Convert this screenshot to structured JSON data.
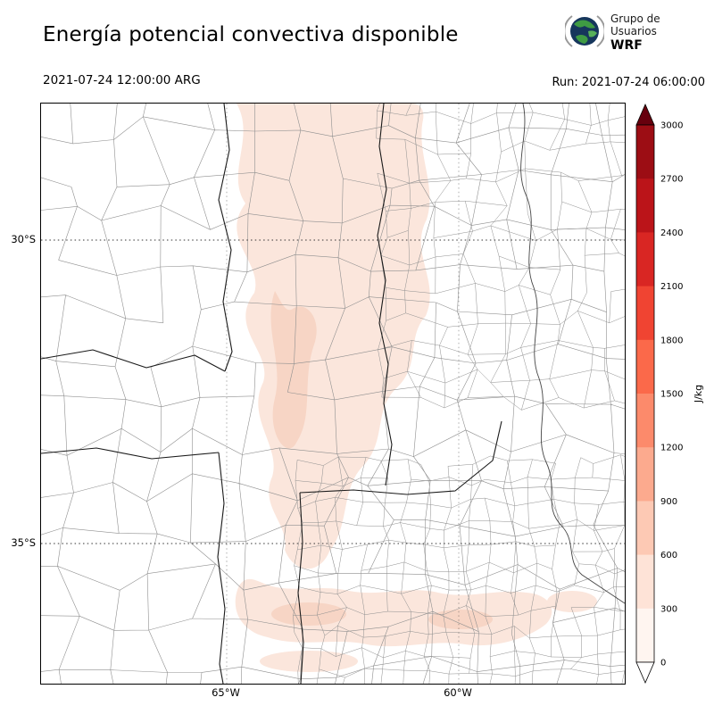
{
  "header": {
    "title": "Energía potencial convectiva disponible",
    "valid_time": "2021-07-24 12:00:00 ARG",
    "run_label": "Run: 2021-07-24 06:00:00"
  },
  "logo": {
    "line1": "Grupo de",
    "line2": "Usuarios",
    "line3": "WRF"
  },
  "axes": {
    "lat_ticks": [
      "30°S",
      "35°S"
    ],
    "lon_ticks": [
      "65°W",
      "60°W"
    ]
  },
  "colorbar": {
    "unit": "J/kg",
    "ticks_top_to_bottom": [
      "3000",
      "2700",
      "2400",
      "2100",
      "1800",
      "1500",
      "1200",
      "900",
      "600",
      "300",
      "0"
    ],
    "segment_colors_top_to_bottom": [
      "#9c0d14",
      "#bb1419",
      "#d92623",
      "#f04432",
      "#fb694a",
      "#fc8a6b",
      "#fcaa8e",
      "#fdc9b4",
      "#fee3d7",
      "#fff5f0"
    ],
    "over_arrow_color": "#67000d",
    "under_arrow_color": "#ffffff"
  },
  "map_colors": {
    "shading_light": "#fbe6dc",
    "shading_medium": "#f7d5c5",
    "department_line": "#8f8f8f",
    "province_line": "#1a1a1a",
    "river_line": "#444444"
  },
  "chart_data": {
    "type": "heatmap",
    "title": "Energía potencial convectiva disponible",
    "units": "J/kg",
    "valid_time": "2021-07-24 12:00:00 ARG",
    "run": "2021-07-24 06:00:00",
    "levels": [
      0,
      300,
      600,
      900,
      1200,
      1500,
      1800,
      2100,
      2400,
      2700,
      3000
    ],
    "colormap": "Reds, white (0) to dark red (3000), arrow extensions on both ends",
    "x_tick_labels": [
      "65°W",
      "60°W"
    ],
    "y_tick_labels": [
      "30°S",
      "35°S"
    ],
    "grid": "dotted latitude/longitude gridlines at 30°S, 35°S, 65°W, 60°W",
    "legend_position": "vertical colorbar at right",
    "basemap": "central Argentina province and department boundaries",
    "observed_field": [
      {
        "region": "elongated N-S central band near 64°W (Córdoba / Santiago del Estero)",
        "cape_jkg": "0-600"
      },
      {
        "region": "E-W patchy band near 35.5°S (La Pampa / southern Buenos Aires)",
        "cape_jkg": "0-300"
      },
      {
        "region": "remainder of domain",
        "cape_jkg": "0"
      }
    ]
  }
}
